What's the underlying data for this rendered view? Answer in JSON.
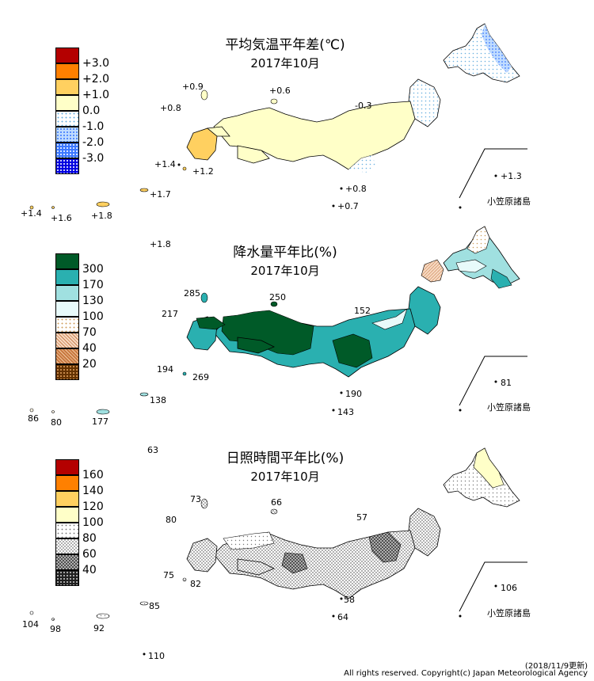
{
  "colors": {
    "temp": [
      "#b40000",
      "#ff8000",
      "#ffd060",
      "#ffffc8",
      "#e6f7ff",
      "#c0dcff",
      "#3c78ff",
      "#0000e0"
    ],
    "precip": [
      "#005a28",
      "#2ab0b0",
      "#a0e0e0",
      "#e8fafa",
      "#fff8e8",
      "#f0c8a0",
      "#c87840",
      "#643200"
    ],
    "sun": [
      "#b40000",
      "#ff8000",
      "#ffd060",
      "#ffffc8",
      "#ffffff",
      "#d8d8d8",
      "#909090",
      "#303030"
    ]
  },
  "panels": [
    {
      "id": "temp",
      "title": "平均気温平年差(℃)",
      "subtitle": "2017年10月",
      "legend_labels": [
        "+3.0",
        "+2.0",
        "+1.0",
        "0.0",
        "-1.0",
        "-2.0",
        "-3.0"
      ],
      "values": [
        "+0.9",
        "+0.6",
        "+0.8",
        "-0.3",
        "+1.4",
        "+1.2",
        "+1.3",
        "+0.8",
        "+0.7",
        "+1.7",
        "+1.4",
        "+1.6",
        "+1.8",
        "+1.8"
      ],
      "bonin_label": "小笠原諸島"
    },
    {
      "id": "precip",
      "title": "降水量平年比(%)",
      "subtitle": "2017年10月",
      "legend_labels": [
        "300",
        "170",
        "130",
        "100",
        "70",
        "40",
        "20"
      ],
      "values": [
        "285",
        "250",
        "217",
        "152",
        "194",
        "269",
        "81",
        "190",
        "143",
        "138",
        "86",
        "80",
        "177",
        "63"
      ],
      "bonin_label": "小笠原諸島"
    },
    {
      "id": "sun",
      "title": "日照時間平年比(%)",
      "subtitle": "2017年10月",
      "legend_labels": [
        "160",
        "140",
        "120",
        "100",
        "80",
        "60",
        "40"
      ],
      "values": [
        "73",
        "66",
        "80",
        "57",
        "75",
        "82",
        "106",
        "58",
        "64",
        "85",
        "104",
        "98",
        "92",
        "110"
      ],
      "bonin_label": "小笠原諸島"
    }
  ],
  "footer": {
    "updated": "(2018/11/9更新)",
    "copyright": "All rights reserved. Copyright(c) Japan Meteorological Agency"
  }
}
